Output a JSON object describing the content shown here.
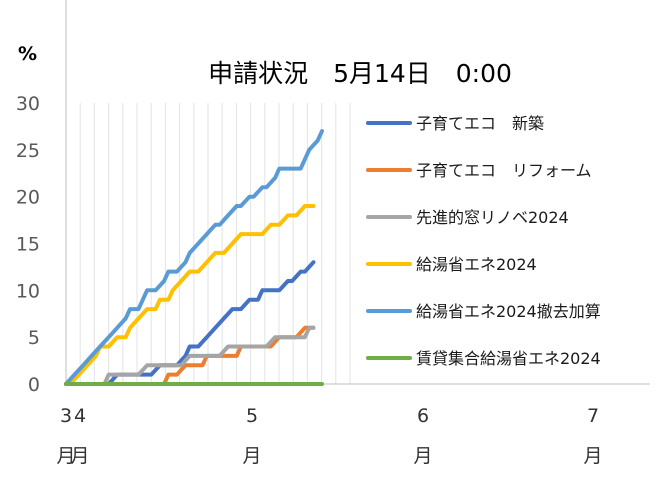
{
  "chart_data": {
    "type": "line",
    "title": "申請状況　5月14日　0:00",
    "ylabel": "%",
    "ylim": [
      0,
      30
    ],
    "yticks": [
      "0",
      "5",
      "10",
      "15",
      "20",
      "25",
      "30"
    ],
    "x_tick_labels": [
      {
        "month": 3,
        "line1": "3",
        "line2": "月"
      },
      {
        "month": 4,
        "line1": "4",
        "line2": "月"
      },
      {
        "month": 5,
        "line1": "5",
        "line2": "月"
      },
      {
        "month": 6,
        "line1": "6",
        "line2": "月"
      },
      {
        "month": 7,
        "line1": "7",
        "line2": "月"
      }
    ],
    "grid": true,
    "legend_position": "right",
    "series": [
      {
        "name": "子育てエコ　新築",
        "color": "#4472C4",
        "points": [
          [
            0,
            0
          ],
          [
            10,
            0
          ],
          [
            12,
            1
          ],
          [
            20,
            1
          ],
          [
            22,
            2
          ],
          [
            26,
            2
          ],
          [
            28,
            3
          ],
          [
            29,
            4
          ],
          [
            31,
            4
          ],
          [
            33,
            5
          ],
          [
            35,
            6
          ],
          [
            37,
            7
          ],
          [
            39,
            8
          ],
          [
            41,
            8
          ],
          [
            43,
            9
          ],
          [
            45,
            9
          ],
          [
            46,
            10
          ],
          [
            50,
            10
          ],
          [
            52,
            11
          ],
          [
            53,
            11
          ],
          [
            55,
            12
          ],
          [
            56,
            12
          ],
          [
            58,
            13
          ]
        ]
      },
      {
        "name": "子育てエコ　リフォーム",
        "color": "#ED7D31",
        "points": [
          [
            0,
            0
          ],
          [
            23,
            0
          ],
          [
            24,
            1
          ],
          [
            26,
            1
          ],
          [
            28,
            2
          ],
          [
            32,
            2
          ],
          [
            33,
            3
          ],
          [
            40,
            3
          ],
          [
            41,
            4
          ],
          [
            48,
            4
          ],
          [
            50,
            5
          ],
          [
            54,
            5
          ],
          [
            56,
            6
          ],
          [
            58,
            6
          ]
        ]
      },
      {
        "name": "先進的窓リノベ2024",
        "color": "#A5A5A5",
        "points": [
          [
            0,
            0
          ],
          [
            9,
            0
          ],
          [
            10,
            1
          ],
          [
            17,
            1
          ],
          [
            19,
            2
          ],
          [
            27,
            2
          ],
          [
            29,
            3
          ],
          [
            36,
            3
          ],
          [
            38,
            4
          ],
          [
            47,
            4
          ],
          [
            49,
            5
          ],
          [
            56,
            5
          ],
          [
            57,
            6
          ],
          [
            58,
            6
          ]
        ]
      },
      {
        "name": "給湯省エネ2024",
        "color": "#FFC000",
        "points": [
          [
            0,
            0
          ],
          [
            1,
            0
          ],
          [
            3,
            1
          ],
          [
            5,
            2
          ],
          [
            7,
            3
          ],
          [
            8,
            4
          ],
          [
            10,
            4
          ],
          [
            12,
            5
          ],
          [
            14,
            5
          ],
          [
            15,
            6
          ],
          [
            17,
            7
          ],
          [
            19,
            8
          ],
          [
            21,
            8
          ],
          [
            22,
            9
          ],
          [
            24,
            9
          ],
          [
            25,
            10
          ],
          [
            27,
            11
          ],
          [
            29,
            12
          ],
          [
            31,
            12
          ],
          [
            33,
            13
          ],
          [
            35,
            14
          ],
          [
            37,
            14
          ],
          [
            39,
            15
          ],
          [
            41,
            16
          ],
          [
            46,
            16
          ],
          [
            48,
            17
          ],
          [
            50,
            17
          ],
          [
            52,
            18
          ],
          [
            54,
            18
          ],
          [
            56,
            19
          ],
          [
            58,
            19
          ]
        ]
      },
      {
        "name": "給湯省エネ2024撤去加算",
        "color": "#5B9BD5",
        "points": [
          [
            0,
            0
          ],
          [
            2,
            1
          ],
          [
            4,
            2
          ],
          [
            6,
            3
          ],
          [
            8,
            4
          ],
          [
            10,
            5
          ],
          [
            12,
            6
          ],
          [
            14,
            7
          ],
          [
            15,
            8
          ],
          [
            17,
            8
          ],
          [
            19,
            10
          ],
          [
            21,
            10
          ],
          [
            23,
            11
          ],
          [
            24,
            12
          ],
          [
            26,
            12
          ],
          [
            28,
            13
          ],
          [
            29,
            14
          ],
          [
            31,
            15
          ],
          [
            33,
            16
          ],
          [
            35,
            17
          ],
          [
            36,
            17
          ],
          [
            38,
            18
          ],
          [
            40,
            19
          ],
          [
            41,
            19
          ],
          [
            43,
            20
          ],
          [
            44,
            20
          ],
          [
            46,
            21
          ],
          [
            47,
            21
          ],
          [
            49,
            22
          ],
          [
            50,
            23
          ],
          [
            55,
            23
          ],
          [
            57,
            25
          ],
          [
            59,
            26
          ],
          [
            60,
            27
          ]
        ]
      },
      {
        "name": "賃貸集合給湯省エネ2024",
        "color": "#70AD47",
        "points": [
          [
            0,
            0
          ],
          [
            60,
            0
          ]
        ]
      }
    ]
  }
}
